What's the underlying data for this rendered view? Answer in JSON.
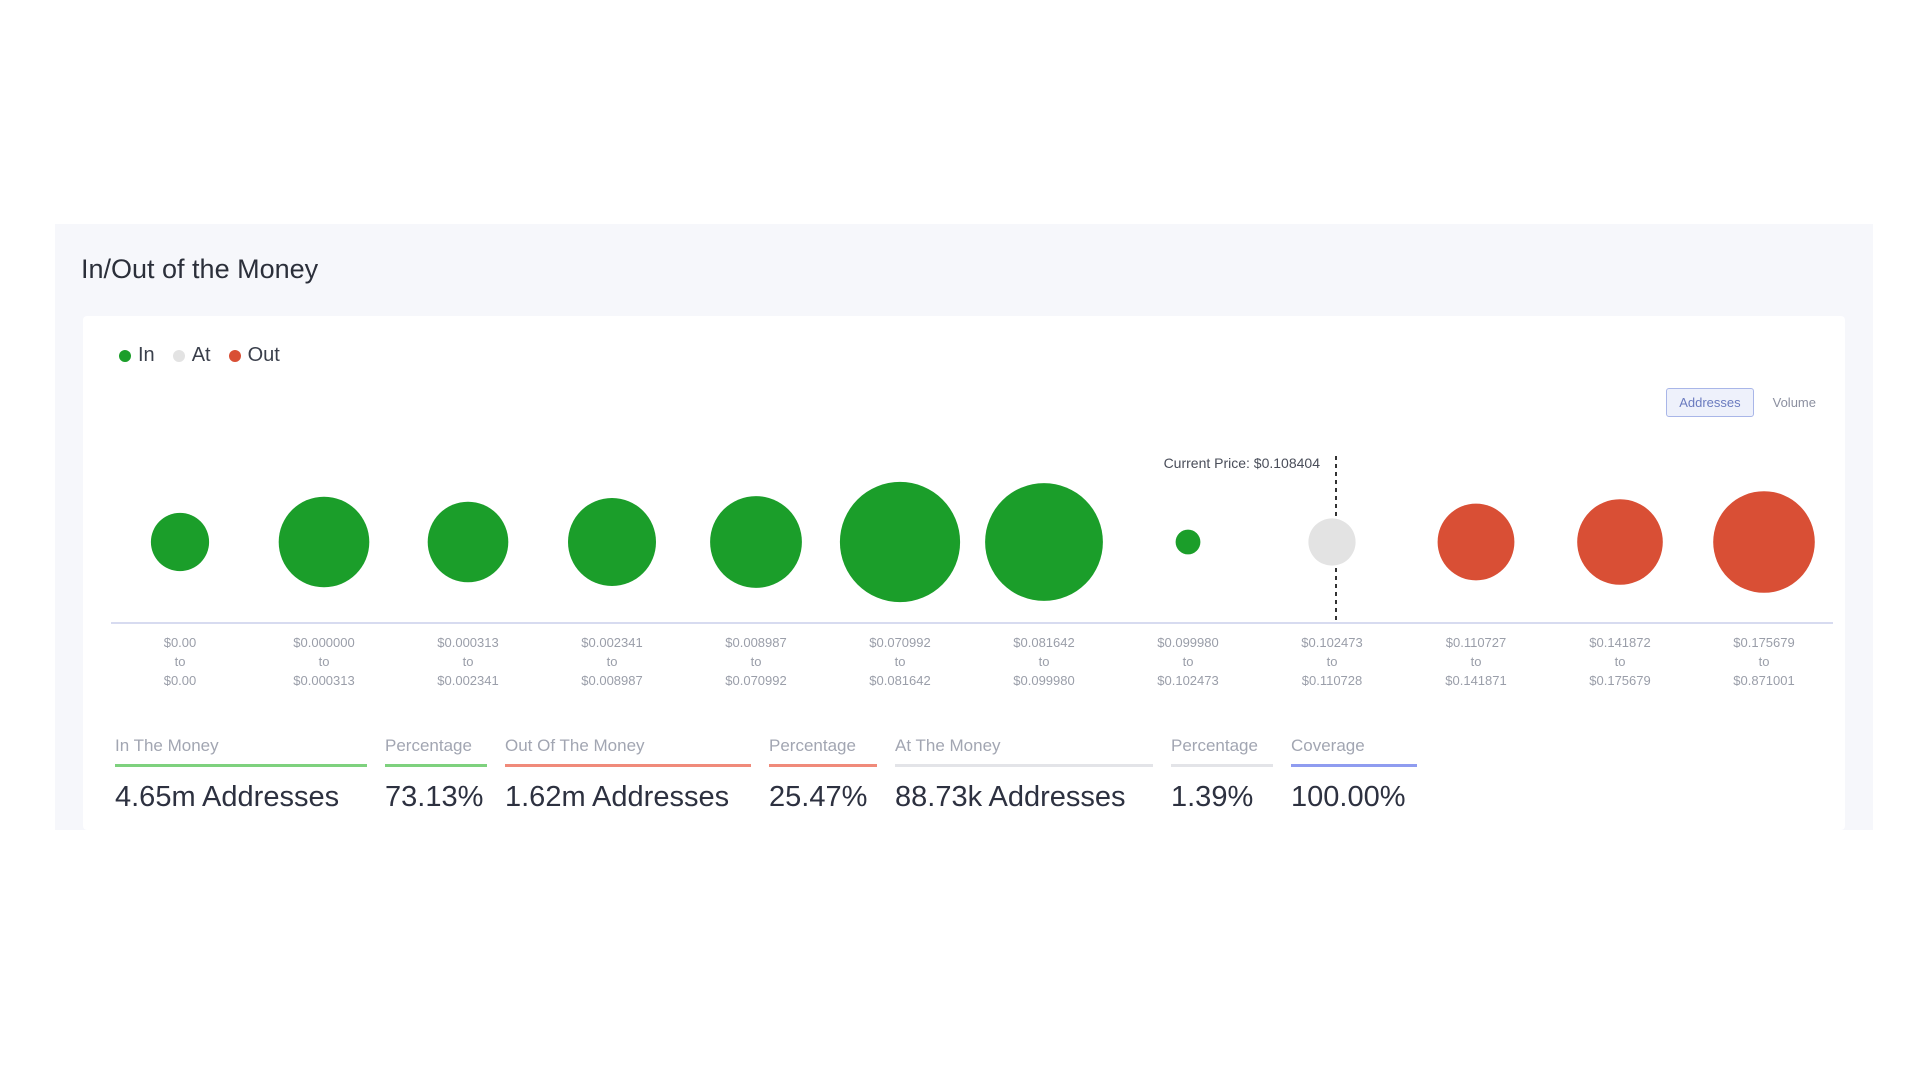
{
  "title": "In/Out of the Money",
  "legend": [
    {
      "label": "In",
      "color": "#1b9e2a"
    },
    {
      "label": "At",
      "color": "#e3e3e3"
    },
    {
      "label": "Out",
      "color": "#d94f35"
    }
  ],
  "toggle": {
    "addresses": "Addresses",
    "volume": "Volume"
  },
  "current_price_label": "Current Price: $0.108404",
  "chart_data": {
    "type": "bubble",
    "current_price": 0.108404,
    "buckets": [
      {
        "range": [
          "$0.00",
          "to",
          "$0.00"
        ],
        "status": "in",
        "relative_size": 0.47
      },
      {
        "range": [
          "$0.000000",
          "to",
          "$0.000313"
        ],
        "status": "in",
        "relative_size": 0.73
      },
      {
        "range": [
          "$0.000313",
          "to",
          "$0.002341"
        ],
        "status": "in",
        "relative_size": 0.65
      },
      {
        "range": [
          "$0.002341",
          "to",
          "$0.008987"
        ],
        "status": "in",
        "relative_size": 0.71
      },
      {
        "range": [
          "$0.008987",
          "to",
          "$0.070992"
        ],
        "status": "in",
        "relative_size": 0.74
      },
      {
        "range": [
          "$0.070992",
          "to",
          "$0.081642"
        ],
        "status": "in",
        "relative_size": 0.97
      },
      {
        "range": [
          "$0.081642",
          "to",
          "$0.099980"
        ],
        "status": "in",
        "relative_size": 0.95
      },
      {
        "range": [
          "$0.099980",
          "to",
          "$0.102473"
        ],
        "status": "in",
        "relative_size": 0.2
      },
      {
        "range": [
          "$0.102473",
          "to",
          "$0.110728"
        ],
        "status": "at",
        "relative_size": 0.38
      },
      {
        "range": [
          "$0.110727",
          "to",
          "$0.141871"
        ],
        "status": "out",
        "relative_size": 0.62
      },
      {
        "range": [
          "$0.141872",
          "to",
          "$0.175679"
        ],
        "status": "out",
        "relative_size": 0.69
      },
      {
        "range": [
          "$0.175679",
          "to",
          "$0.871001"
        ],
        "status": "out",
        "relative_size": 0.82
      }
    ]
  },
  "stats": [
    {
      "label": "In The Money",
      "value": "4.65m Addresses"
    },
    {
      "label": "Percentage",
      "value": "73.13%"
    },
    {
      "label": "Out Of The Money",
      "value": "1.62m Addresses"
    },
    {
      "label": "Percentage",
      "value": "25.47%"
    },
    {
      "label": "At The Money",
      "value": "88.73k Addresses"
    },
    {
      "label": "Percentage",
      "value": "1.39%"
    },
    {
      "label": "Coverage",
      "value": "100.00%"
    }
  ]
}
